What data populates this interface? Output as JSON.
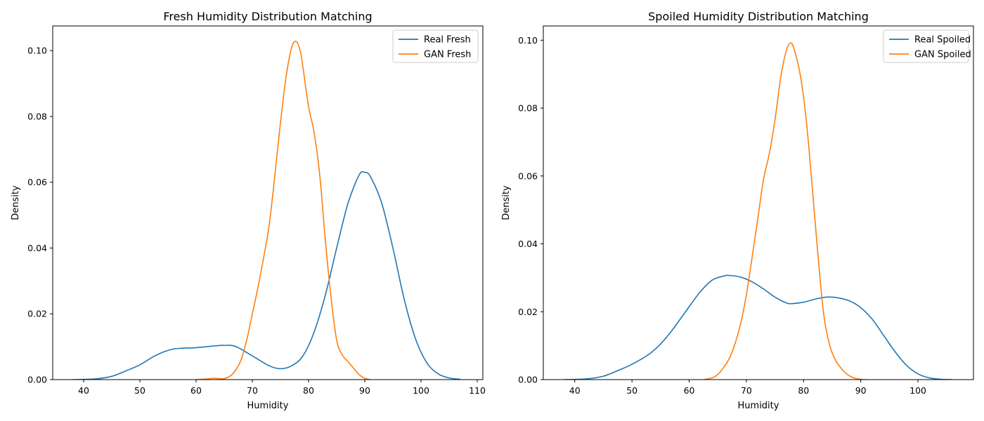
{
  "chart_data": [
    {
      "type": "line",
      "title": "Fresh Humidity Distribution Matching",
      "xlabel": "Humidity",
      "ylabel": "Density",
      "xlim": [
        34.5,
        111
      ],
      "ylim": [
        0,
        0.1075
      ],
      "xticks": [
        "40",
        "50",
        "60",
        "70",
        "80",
        "90",
        "100",
        "110"
      ],
      "yticks": [
        "0.00",
        "0.02",
        "0.04",
        "0.06",
        "0.08",
        "0.10"
      ],
      "grid": false,
      "legend": "top-right",
      "series": [
        {
          "name": "Real Fresh",
          "color": "#1f77b4",
          "x": [
            38,
            42,
            45,
            48,
            50,
            53,
            56,
            60,
            63,
            65,
            67,
            70,
            73,
            75,
            77,
            79,
            81,
            83,
            85,
            87,
            89,
            90,
            91,
            93,
            95,
            97,
            99,
            101,
            103,
            105,
            107
          ],
          "y": [
            0.0,
            0.0002,
            0.001,
            0.003,
            0.0045,
            0.0075,
            0.0093,
            0.0097,
            0.0102,
            0.0104,
            0.0101,
            0.0072,
            0.0042,
            0.0033,
            0.0042,
            0.0072,
            0.0145,
            0.0258,
            0.04,
            0.0535,
            0.0622,
            0.063,
            0.0617,
            0.0537,
            0.04,
            0.0245,
            0.0125,
            0.0052,
            0.0018,
            0.0005,
            0.0001
          ]
        },
        {
          "name": "GAN Fresh",
          "color": "#ff7f0e",
          "x": [
            60,
            62,
            63,
            64,
            65,
            66,
            67,
            68,
            69,
            70,
            71,
            72,
            73,
            74,
            75,
            76,
            77,
            77.8,
            78.5,
            79,
            80,
            81,
            82,
            83,
            84,
            85,
            86,
            87,
            88,
            89,
            90,
            91
          ],
          "y": [
            0.0,
            0.0002,
            0.0004,
            0.0003,
            0.0003,
            0.001,
            0.0028,
            0.006,
            0.012,
            0.02,
            0.028,
            0.037,
            0.047,
            0.062,
            0.078,
            0.092,
            0.101,
            0.1028,
            0.1,
            0.095,
            0.083,
            0.075,
            0.062,
            0.042,
            0.025,
            0.012,
            0.0075,
            0.0055,
            0.0035,
            0.0015,
            0.0004,
            0.0
          ]
        }
      ]
    },
    {
      "type": "line",
      "title": "Spoiled Humidity Distribution Matching",
      "xlabel": "Humidity",
      "ylabel": "Density",
      "xlim": [
        34.5,
        109.7
      ],
      "ylim": [
        0,
        0.1042
      ],
      "xticks": [
        "40",
        "50",
        "60",
        "70",
        "80",
        "90",
        "100"
      ],
      "yticks": [
        "0.00",
        "0.02",
        "0.04",
        "0.06",
        "0.08",
        "0.10"
      ],
      "grid": false,
      "legend": "top-right",
      "series": [
        {
          "name": "Real Spoiled",
          "color": "#1f77b4",
          "x": [
            38,
            42,
            45,
            48,
            50,
            53,
            55,
            57,
            60,
            62,
            64,
            66,
            67,
            69,
            71,
            73,
            75,
            77,
            78,
            80,
            82,
            84,
            86,
            88,
            90,
            92,
            94,
            96,
            98,
            100,
            102,
            104,
            106
          ],
          "y": [
            0.0,
            0.0002,
            0.001,
            0.003,
            0.0045,
            0.0075,
            0.0105,
            0.0145,
            0.0215,
            0.026,
            0.0293,
            0.0305,
            0.0307,
            0.0302,
            0.0288,
            0.0267,
            0.0243,
            0.0226,
            0.0224,
            0.0228,
            0.0237,
            0.0243,
            0.0241,
            0.0232,
            0.0212,
            0.0178,
            0.013,
            0.0082,
            0.0042,
            0.0017,
            0.0005,
            0.0001,
            0.0
          ]
        },
        {
          "name": "GAN Spoiled",
          "color": "#ff7f0e",
          "x": [
            62.5,
            64,
            65,
            66,
            67,
            68,
            69,
            70,
            71,
            72,
            73,
            74,
            75,
            76,
            77,
            77.8,
            78.5,
            79.5,
            80.5,
            81.5,
            82.5,
            83.5,
            84.5,
            85.5,
            86.5,
            87.5,
            88.5,
            89.5,
            90.5,
            91
          ],
          "y": [
            0.0,
            0.0005,
            0.0015,
            0.0035,
            0.0062,
            0.0105,
            0.0165,
            0.025,
            0.036,
            0.0475,
            0.059,
            0.0665,
            0.0765,
            0.089,
            0.097,
            0.0992,
            0.0965,
            0.089,
            0.076,
            0.057,
            0.037,
            0.0195,
            0.0105,
            0.006,
            0.0035,
            0.0017,
            0.0007,
            0.0002,
            0.0,
            0.0
          ]
        }
      ]
    }
  ]
}
